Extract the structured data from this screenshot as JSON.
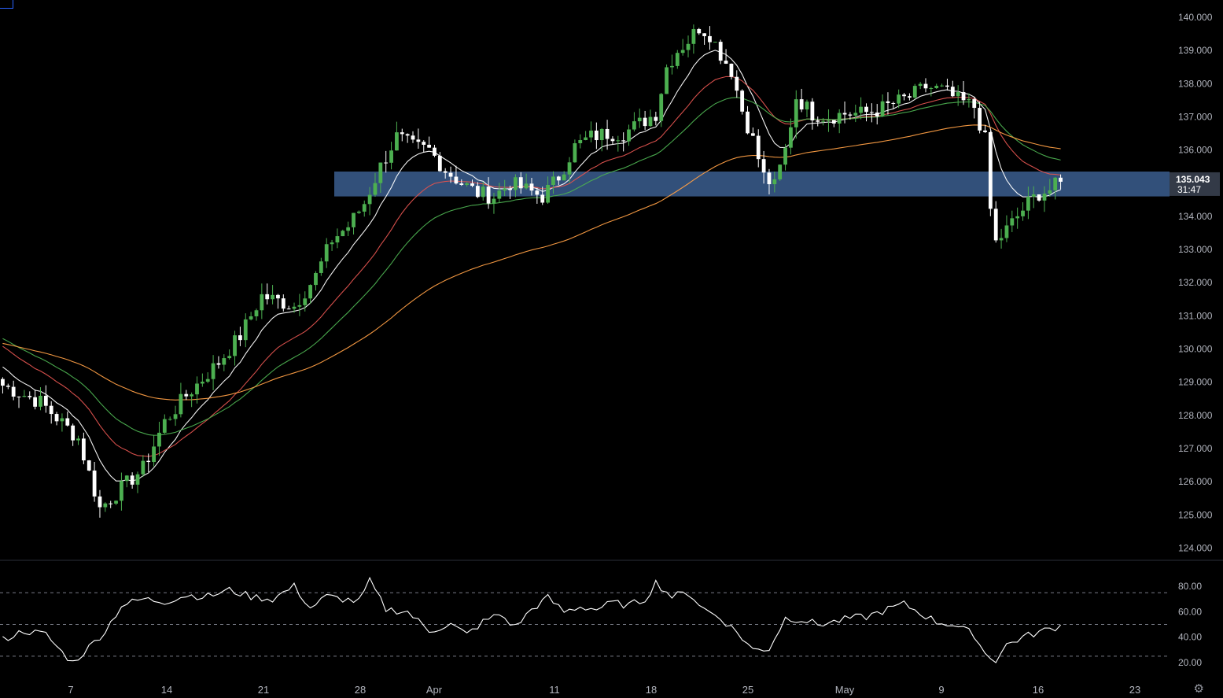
{
  "chart_data": [
    {
      "type": "candlestick",
      "title": "",
      "xlabel": "",
      "ylabel": "",
      "ylim": [
        124.0,
        140.0
      ],
      "y_ticks": [
        "140.000",
        "139.000",
        "138.000",
        "137.000",
        "136.000",
        "135.000",
        "134.000",
        "133.000",
        "132.000",
        "131.000",
        "130.000",
        "129.000",
        "128.000",
        "127.000",
        "126.000",
        "125.000",
        "124.000"
      ],
      "x_ticks": [
        "7",
        "14",
        "21",
        "28",
        "Apr",
        "11",
        "18",
        "25",
        "May",
        "9",
        "16",
        "23"
      ],
      "current_price": "135.043",
      "countdown": "31:47",
      "zone": {
        "low": 134.6,
        "high": 135.35,
        "color": "#3b5e8f"
      },
      "colors": {
        "up": "#4caf50",
        "down": "#ffffff",
        "ma_fast": "#ffffff",
        "ma_red": "#e0534f",
        "ma_green": "#4caf50",
        "ma_orange": "#ff9f45"
      },
      "price_path": [
        [
          0,
          128.9
        ],
        [
          7,
          128.4
        ],
        [
          14,
          127.3
        ],
        [
          18,
          125.2
        ],
        [
          22,
          125.8
        ],
        [
          26,
          126.4
        ],
        [
          30,
          127.8
        ],
        [
          34,
          128.6
        ],
        [
          40,
          129.6
        ],
        [
          44,
          130.4
        ],
        [
          48,
          131.6
        ],
        [
          50,
          131.5
        ],
        [
          54,
          131.3
        ],
        [
          58,
          132.2
        ],
        [
          61,
          133.3
        ],
        [
          64,
          133.7
        ],
        [
          67,
          134.4
        ],
        [
          70,
          135.5
        ],
        [
          73,
          136.4
        ],
        [
          76,
          136.1
        ],
        [
          79,
          136.0
        ],
        [
          82,
          135.4
        ],
        [
          85,
          135.0
        ],
        [
          88,
          134.7
        ],
        [
          91,
          134.6
        ],
        [
          94,
          135.0
        ],
        [
          97,
          134.8
        ],
        [
          100,
          134.6
        ],
        [
          103,
          135.2
        ],
        [
          106,
          136.1
        ],
        [
          109,
          136.4
        ],
        [
          112,
          136.5
        ],
        [
          115,
          136.5
        ],
        [
          118,
          136.8
        ],
        [
          121,
          137.1
        ],
        [
          123,
          138.5
        ],
        [
          125,
          139.0
        ],
        [
          127,
          139.3
        ],
        [
          129,
          139.7
        ],
        [
          131,
          139.5
        ],
        [
          133,
          138.9
        ],
        [
          135,
          138.4
        ],
        [
          137,
          137.2
        ],
        [
          139,
          136.3
        ],
        [
          141,
          135.2
        ],
        [
          143,
          134.9
        ],
        [
          145,
          136.0
        ],
        [
          147,
          137.6
        ],
        [
          150,
          137.1
        ],
        [
          153,
          137.0
        ],
        [
          156,
          137.1
        ],
        [
          159,
          137.1
        ],
        [
          162,
          137.2
        ],
        [
          165,
          137.4
        ],
        [
          168,
          137.6
        ],
        [
          171,
          137.9
        ],
        [
          174,
          137.8
        ],
        [
          177,
          137.5
        ],
        [
          180,
          137.3
        ],
        [
          182,
          136.3
        ],
        [
          183,
          134.2
        ],
        [
          184,
          133.2
        ],
        [
          186,
          133.6
        ],
        [
          188,
          134.0
        ],
        [
          190,
          134.4
        ],
        [
          192,
          134.7
        ],
        [
          194,
          134.8
        ],
        [
          196,
          135.04
        ]
      ],
      "rsi": {
        "ylim": [
          15,
          90
        ],
        "y_ticks": [
          "80.00",
          "60.00",
          "40.00",
          "20.00"
        ],
        "levels": [
          75,
          50,
          25
        ],
        "path": [
          [
            0,
            38
          ],
          [
            4,
            45
          ],
          [
            8,
            42
          ],
          [
            11,
            28
          ],
          [
            13,
            20
          ],
          [
            16,
            32
          ],
          [
            19,
            45
          ],
          [
            22,
            65
          ],
          [
            26,
            70
          ],
          [
            30,
            68
          ],
          [
            34,
            73
          ],
          [
            38,
            72
          ],
          [
            42,
            77
          ],
          [
            46,
            72
          ],
          [
            50,
            70
          ],
          [
            54,
            80
          ],
          [
            57,
            63
          ],
          [
            60,
            72
          ],
          [
            63,
            70
          ],
          [
            66,
            68
          ],
          [
            68,
            84
          ],
          [
            71,
            62
          ],
          [
            75,
            60
          ],
          [
            79,
            45
          ],
          [
            83,
            50
          ],
          [
            86,
            42
          ],
          [
            89,
            52
          ],
          [
            92,
            58
          ],
          [
            95,
            48
          ],
          [
            98,
            62
          ],
          [
            101,
            71
          ],
          [
            104,
            60
          ],
          [
            107,
            64
          ],
          [
            110,
            62
          ],
          [
            113,
            67
          ],
          [
            116,
            65
          ],
          [
            119,
            70
          ],
          [
            121,
            83
          ],
          [
            124,
            72
          ],
          [
            127,
            75
          ],
          [
            130,
            62
          ],
          [
            133,
            55
          ],
          [
            136,
            44
          ],
          [
            139,
            30
          ],
          [
            142,
            31
          ],
          [
            145,
            55
          ],
          [
            148,
            54
          ],
          [
            151,
            50
          ],
          [
            154,
            52
          ],
          [
            157,
            55
          ],
          [
            160,
            56
          ],
          [
            164,
            62
          ],
          [
            167,
            66
          ],
          [
            170,
            59
          ],
          [
            173,
            52
          ],
          [
            176,
            50
          ],
          [
            178,
            46
          ],
          [
            180,
            42
          ],
          [
            182,
            27
          ],
          [
            184,
            22
          ],
          [
            186,
            34
          ],
          [
            189,
            40
          ],
          [
            192,
            44
          ],
          [
            196,
            49
          ]
        ]
      }
    }
  ],
  "ui": {
    "settings_icon": "gear-icon"
  }
}
